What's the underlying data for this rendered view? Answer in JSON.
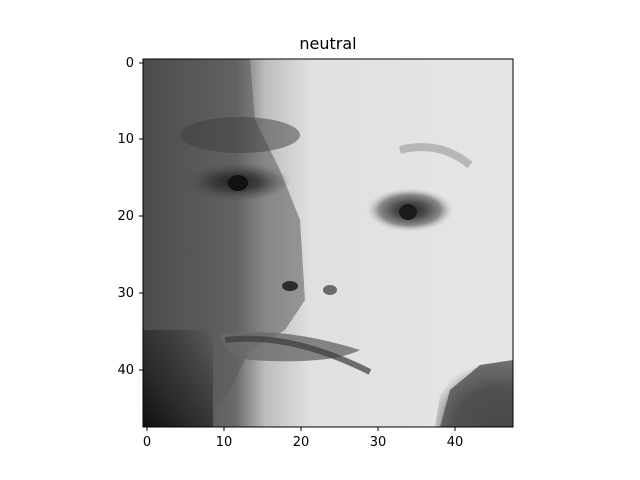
{
  "figure": {
    "title": "neutral",
    "x_ticks": [
      "0",
      "10",
      "20",
      "30",
      "40"
    ],
    "y_ticks": [
      "0",
      "10",
      "20",
      "30",
      "40"
    ],
    "image": {
      "description_type": "grayscale-48x48",
      "colormap": "gray"
    }
  }
}
